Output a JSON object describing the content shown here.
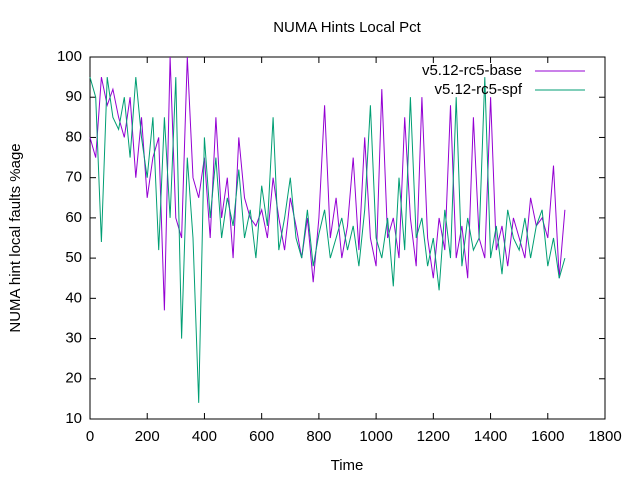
{
  "chart_data": {
    "type": "line",
    "title": "NUMA Hints Local Pct",
    "xlabel": "Time",
    "ylabel": "NUMA hint local faults %age",
    "x": [
      0,
      20,
      40,
      60,
      80,
      100,
      120,
      140,
      160,
      180,
      200,
      220,
      240,
      260,
      280,
      300,
      320,
      340,
      360,
      380,
      400,
      420,
      440,
      460,
      480,
      500,
      520,
      540,
      560,
      580,
      600,
      620,
      640,
      660,
      680,
      700,
      720,
      740,
      760,
      780,
      800,
      820,
      840,
      860,
      880,
      900,
      920,
      940,
      960,
      980,
      1000,
      1020,
      1040,
      1060,
      1080,
      1100,
      1120,
      1140,
      1160,
      1180,
      1200,
      1220,
      1240,
      1260,
      1280,
      1300,
      1320,
      1340,
      1360,
      1380,
      1400,
      1420,
      1440,
      1460,
      1480,
      1500,
      1520,
      1540,
      1560,
      1580,
      1600,
      1620,
      1640,
      1660
    ],
    "series": [
      {
        "name": "v5.12-rc5-base",
        "color": "#9400d3",
        "values": [
          80,
          75,
          95,
          88,
          92,
          85,
          80,
          90,
          70,
          85,
          65,
          75,
          80,
          37,
          100,
          60,
          55,
          100,
          70,
          65,
          75,
          55,
          85,
          60,
          70,
          50,
          80,
          65,
          60,
          58,
          62,
          55,
          70,
          60,
          52,
          65,
          58,
          50,
          60,
          44,
          60,
          88,
          55,
          65,
          50,
          58,
          75,
          52,
          80,
          55,
          48,
          92,
          55,
          60,
          50,
          85,
          60,
          48,
          90,
          55,
          45,
          60,
          52,
          88,
          50,
          58,
          45,
          85,
          55,
          50,
          90,
          52,
          58,
          48,
          60,
          55,
          50,
          65,
          58,
          60,
          55,
          73,
          45,
          62
        ]
      },
      {
        "name": "v5.12-rc5-spf",
        "color": "#009e73",
        "values": [
          95,
          90,
          54,
          95,
          85,
          82,
          90,
          75,
          95,
          80,
          70,
          85,
          52,
          85,
          60,
          95,
          30,
          75,
          55,
          14,
          80,
          60,
          75,
          55,
          65,
          58,
          72,
          55,
          62,
          50,
          68,
          58,
          85,
          52,
          60,
          70,
          55,
          50,
          62,
          48,
          56,
          62,
          50,
          55,
          60,
          52,
          58,
          48,
          62,
          88,
          55,
          50,
          60,
          43,
          70,
          52,
          90,
          55,
          60,
          48,
          55,
          42,
          62,
          50,
          90,
          48,
          60,
          52,
          55,
          95,
          50,
          58,
          46,
          62,
          55,
          52,
          60,
          50,
          58,
          62,
          48,
          55,
          45,
          50
        ]
      }
    ],
    "xlim": [
      0,
      1800
    ],
    "xticks": [
      0,
      200,
      400,
      600,
      800,
      1000,
      1200,
      1400,
      1600,
      1800
    ],
    "ylim": [
      10,
      100
    ],
    "yticks": [
      10,
      20,
      30,
      40,
      50,
      60,
      70,
      80,
      90,
      100
    ],
    "legend": "top-right"
  }
}
